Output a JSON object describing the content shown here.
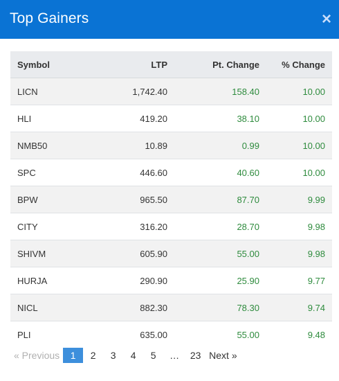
{
  "modal": {
    "title": "Top Gainers",
    "close_icon": "close-icon",
    "close_glyph": "×"
  },
  "table": {
    "columns": [
      "Symbol",
      "LTP",
      "Pt. Change",
      "% Change"
    ],
    "rows": [
      {
        "symbol": "LICN",
        "ltp": "1,742.40",
        "pt_change": "158.40",
        "pct_change": "10.00"
      },
      {
        "symbol": "HLI",
        "ltp": "419.20",
        "pt_change": "38.10",
        "pct_change": "10.00"
      },
      {
        "symbol": "NMB50",
        "ltp": "10.89",
        "pt_change": "0.99",
        "pct_change": "10.00"
      },
      {
        "symbol": "SPC",
        "ltp": "446.60",
        "pt_change": "40.60",
        "pct_change": "10.00"
      },
      {
        "symbol": "BPW",
        "ltp": "965.50",
        "pt_change": "87.70",
        "pct_change": "9.99"
      },
      {
        "symbol": "CITY",
        "ltp": "316.20",
        "pt_change": "28.70",
        "pct_change": "9.98"
      },
      {
        "symbol": "SHIVM",
        "ltp": "605.90",
        "pt_change": "55.00",
        "pct_change": "9.98"
      },
      {
        "symbol": "HURJA",
        "ltp": "290.90",
        "pt_change": "25.90",
        "pct_change": "9.77"
      },
      {
        "symbol": "NICL",
        "ltp": "882.30",
        "pt_change": "78.30",
        "pct_change": "9.74"
      },
      {
        "symbol": "PLI",
        "ltp": "635.00",
        "pt_change": "55.00",
        "pct_change": "9.48"
      }
    ]
  },
  "pagination": {
    "previous": "« Previous",
    "pages": [
      "1",
      "2",
      "3",
      "4",
      "5"
    ],
    "ellipsis": "…",
    "last_page": "23",
    "next": "Next »",
    "current": "1"
  },
  "colors": {
    "header_bg": "#0a73d4",
    "gain_green": "#2e8b3d",
    "active_page": "#3d8fdc"
  }
}
